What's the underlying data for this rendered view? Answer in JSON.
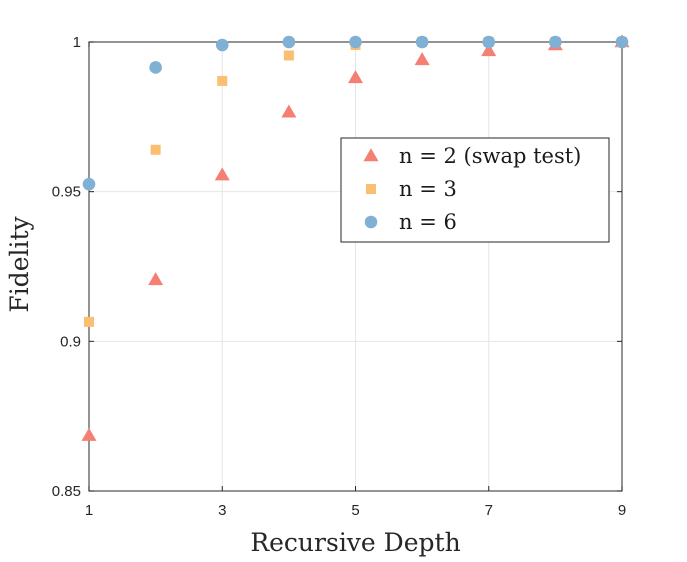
{
  "chart_data": {
    "type": "scatter",
    "xlabel": "Recursive Depth",
    "ylabel": "Fidelity",
    "xlim": [
      1,
      9
    ],
    "ylim": [
      0.85,
      1
    ],
    "xticks": [
      1,
      3,
      5,
      7,
      9
    ],
    "yticks": [
      0.85,
      0.9,
      0.95,
      1
    ],
    "ytick_labels": [
      "0.85",
      "0.9",
      "0.95",
      "1"
    ],
    "grid": true,
    "legend_position": "upper-right-center",
    "x": [
      1,
      2,
      3,
      4,
      5,
      6,
      7,
      8,
      9
    ],
    "series": [
      {
        "name": "n = 2 (swap test)",
        "marker": "triangle",
        "color": "#f47f72",
        "values": [
          0.8685,
          0.9205,
          0.9555,
          0.9765,
          0.988,
          0.994,
          0.997,
          0.999,
          1.0
        ]
      },
      {
        "name": "n = 3",
        "marker": "square",
        "color": "#fbbf72",
        "values": [
          0.9065,
          0.964,
          0.987,
          0.9955,
          0.999,
          1.0,
          1.0,
          1.0,
          1.0
        ]
      },
      {
        "name": "n = 6",
        "marker": "circle",
        "color": "#80b0d3",
        "values": [
          0.9525,
          0.9915,
          0.999,
          1.0,
          1.0,
          1.0,
          1.0,
          1.0,
          1.0
        ]
      }
    ]
  }
}
